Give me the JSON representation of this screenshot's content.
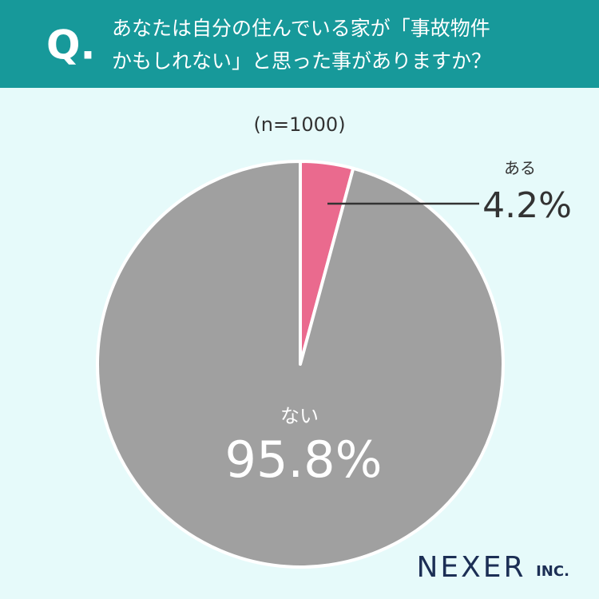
{
  "chart_data": {
    "type": "pie",
    "question_mark": "Q.",
    "title": [
      "あなたは自分の住んでいる家が「事故物件",
      "かもしれない」と思った事がありますか？"
    ],
    "subtitle": "(n=1000)",
    "categories": [
      "ある",
      "ない"
    ],
    "values": [
      4.2,
      95.8
    ],
    "value_labels": [
      "4.2%",
      "95.8%"
    ],
    "colors": [
      "#ea6a8e",
      "#a0a0a0"
    ]
  },
  "brand": {
    "name": "NEXER",
    "suffix": "INC."
  }
}
